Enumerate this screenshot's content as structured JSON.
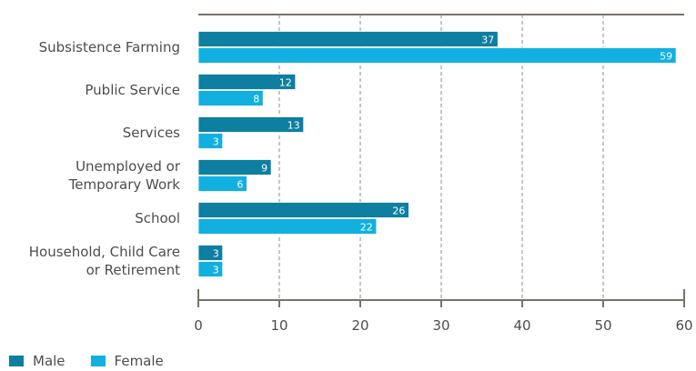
{
  "chart_data": {
    "type": "bar",
    "orientation": "horizontal",
    "categories": [
      [
        "Subsistence Farming"
      ],
      [
        "Public Service"
      ],
      [
        "Services"
      ],
      [
        "Unemployed or",
        "Temporary Work"
      ],
      [
        "School"
      ],
      [
        "Household, Child Care",
        "or Retirement"
      ]
    ],
    "series": [
      {
        "name": "Male",
        "values": [
          37,
          12,
          13,
          9,
          26,
          3
        ],
        "color": "#0e7fa0"
      },
      {
        "name": "Female",
        "values": [
          59,
          8,
          3,
          6,
          22,
          3
        ],
        "color": "#11b0e0"
      }
    ],
    "xlim": [
      0,
      60
    ],
    "xticks": [
      0,
      10,
      20,
      30,
      40,
      50,
      60
    ],
    "grid": "vertical-dashed",
    "legend_position": "bottom-left",
    "xlabel": "",
    "ylabel": "",
    "title": ""
  }
}
